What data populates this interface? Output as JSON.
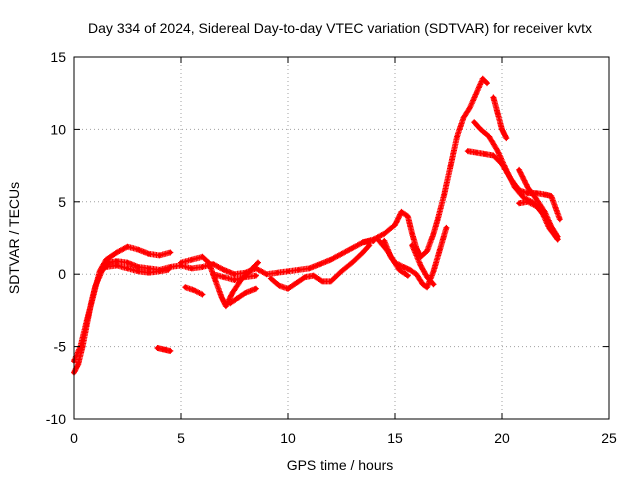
{
  "chart_data": {
    "type": "scatter",
    "title": "Day 334 of 2024, Sidereal Day-to-day VTEC variation (SDTVAR) for receiver kvtx",
    "xlabel": "GPS time / hours",
    "ylabel": "SDTVAR / TECUs",
    "xlim": [
      0,
      25
    ],
    "ylim": [
      -10,
      15
    ],
    "xticks": [
      "0",
      "5",
      "10",
      "15",
      "20",
      "25"
    ],
    "yticks": [
      "-10",
      "-5",
      "0",
      "5",
      "10",
      "15"
    ],
    "grid": true,
    "marker": "+",
    "series": [
      {
        "name": "SDTVAR",
        "color": "#ff0000",
        "segments": [
          [
            [
              0.0,
              -6.8
            ],
            [
              0.2,
              -6.2
            ],
            [
              0.4,
              -5.0
            ],
            [
              0.6,
              -3.5
            ],
            [
              0.8,
              -2.0
            ],
            [
              1.0,
              -0.8
            ],
            [
              1.3,
              0.2
            ],
            [
              1.6,
              0.8
            ],
            [
              2.0,
              0.9
            ],
            [
              2.5,
              0.8
            ],
            [
              3.0,
              0.5
            ],
            [
              3.5,
              0.4
            ],
            [
              4.0,
              0.3
            ],
            [
              4.5,
              0.5
            ],
            [
              5.0,
              0.6
            ],
            [
              5.5,
              0.4
            ],
            [
              6.0,
              0.5
            ],
            [
              6.5,
              0.7
            ],
            [
              7.0,
              0.3
            ],
            [
              7.5,
              0.0
            ],
            [
              8.0,
              0.1
            ],
            [
              8.5,
              0.4
            ],
            [
              9.0,
              0.0
            ],
            [
              9.5,
              0.1
            ],
            [
              10.0,
              0.2
            ],
            [
              10.5,
              0.3
            ],
            [
              11.0,
              0.4
            ],
            [
              11.5,
              0.7
            ],
            [
              12.0,
              1.0
            ],
            [
              12.5,
              1.4
            ],
            [
              13.0,
              1.8
            ],
            [
              13.5,
              2.2
            ],
            [
              14.0,
              2.4
            ],
            [
              14.5,
              2.8
            ],
            [
              15.0,
              3.4
            ],
            [
              15.3,
              4.3
            ],
            [
              15.6,
              4.0
            ],
            [
              15.8,
              2.8
            ],
            [
              16.0,
              1.8
            ],
            [
              16.2,
              1.2
            ],
            [
              16.5,
              1.6
            ],
            [
              16.8,
              2.8
            ],
            [
              17.0,
              3.8
            ],
            [
              17.3,
              5.5
            ],
            [
              17.6,
              7.5
            ],
            [
              17.9,
              9.5
            ],
            [
              18.2,
              10.8
            ],
            [
              18.5,
              11.5
            ],
            [
              18.8,
              12.5
            ],
            [
              19.1,
              13.5
            ],
            [
              19.3,
              13.2
            ]
          ],
          [
            [
              0.0,
              -6.0
            ],
            [
              0.3,
              -5.0
            ],
            [
              0.6,
              -3.2
            ],
            [
              0.9,
              -1.5
            ],
            [
              1.2,
              0.2
            ],
            [
              1.5,
              1.0
            ],
            [
              2.0,
              1.5
            ],
            [
              2.5,
              1.9
            ],
            [
              3.0,
              1.7
            ],
            [
              3.5,
              1.4
            ],
            [
              4.0,
              1.3
            ],
            [
              4.5,
              1.5
            ]
          ],
          [
            [
              1.5,
              0.5
            ],
            [
              2.0,
              0.6
            ],
            [
              2.5,
              0.4
            ],
            [
              3.0,
              0.2
            ],
            [
              3.5,
              0.1
            ],
            [
              4.0,
              0.2
            ],
            [
              4.4,
              0.3
            ]
          ],
          [
            [
              5.0,
              0.8
            ],
            [
              5.5,
              1.0
            ],
            [
              6.0,
              1.2
            ],
            [
              6.3,
              0.8
            ],
            [
              6.6,
              -0.4
            ],
            [
              6.9,
              -1.6
            ],
            [
              7.1,
              -2.2
            ],
            [
              7.4,
              -1.3
            ],
            [
              7.8,
              -0.4
            ],
            [
              8.2,
              0.2
            ],
            [
              8.6,
              0.8
            ]
          ],
          [
            [
              5.2,
              -0.9
            ],
            [
              5.6,
              -1.1
            ],
            [
              6.0,
              -1.4
            ]
          ],
          [
            [
              7.3,
              -2.0
            ],
            [
              7.6,
              -1.7
            ],
            [
              8.0,
              -1.3
            ],
            [
              8.5,
              -1.0
            ]
          ],
          [
            [
              6.5,
              0.0
            ],
            [
              7.0,
              -0.2
            ],
            [
              7.5,
              -0.4
            ],
            [
              8.0,
              -0.2
            ],
            [
              8.5,
              -0.1
            ]
          ],
          [
            [
              3.9,
              -5.1
            ],
            [
              4.2,
              -5.2
            ],
            [
              4.5,
              -5.3
            ]
          ],
          [
            [
              9.2,
              -0.3
            ],
            [
              9.6,
              -0.8
            ],
            [
              10.0,
              -1.0
            ],
            [
              10.4,
              -0.6
            ],
            [
              10.8,
              -0.2
            ],
            [
              11.2,
              -0.1
            ],
            [
              11.6,
              -0.5
            ],
            [
              12.0,
              -0.5
            ],
            [
              12.5,
              0.2
            ],
            [
              13.0,
              0.8
            ],
            [
              13.5,
              1.5
            ],
            [
              13.8,
              2.0
            ]
          ],
          [
            [
              14.2,
              2.4
            ],
            [
              14.6,
              1.7
            ],
            [
              15.0,
              0.8
            ],
            [
              15.4,
              0.5
            ],
            [
              15.7,
              0.3
            ],
            [
              16.0,
              0.0
            ],
            [
              16.3,
              -0.7
            ],
            [
              16.5,
              -0.9
            ],
            [
              16.8,
              0.2
            ],
            [
              17.1,
              1.7
            ],
            [
              17.4,
              3.2
            ]
          ],
          [
            [
              14.5,
              2.3
            ],
            [
              14.8,
              1.2
            ],
            [
              15.2,
              0.3
            ],
            [
              15.6,
              -0.1
            ]
          ],
          [
            [
              15.8,
              2.0
            ],
            [
              16.2,
              0.6
            ],
            [
              16.5,
              -0.2
            ],
            [
              16.8,
              -0.7
            ]
          ],
          [
            [
              18.4,
              8.5
            ],
            [
              18.8,
              8.4
            ],
            [
              19.2,
              8.3
            ],
            [
              19.6,
              8.2
            ],
            [
              20.0,
              7.6
            ],
            [
              20.4,
              6.6
            ],
            [
              20.8,
              5.8
            ],
            [
              21.2,
              5.6
            ],
            [
              21.6,
              5.6
            ],
            [
              22.0,
              5.5
            ],
            [
              22.3,
              5.4
            ],
            [
              22.7,
              3.8
            ]
          ],
          [
            [
              18.7,
              10.5
            ],
            [
              19.0,
              10.0
            ],
            [
              19.4,
              9.5
            ],
            [
              19.8,
              8.5
            ],
            [
              20.2,
              7.2
            ],
            [
              20.6,
              6.0
            ],
            [
              21.0,
              5.3
            ],
            [
              21.4,
              5.0
            ],
            [
              21.8,
              4.5
            ],
            [
              22.2,
              3.2
            ],
            [
              22.6,
              2.4
            ]
          ],
          [
            [
              19.6,
              12.2
            ],
            [
              19.8,
              11.1
            ],
            [
              20.0,
              10.0
            ],
            [
              20.2,
              9.4
            ]
          ],
          [
            [
              20.8,
              4.9
            ],
            [
              21.2,
              5.0
            ],
            [
              21.6,
              4.7
            ],
            [
              22.0,
              4.0
            ],
            [
              22.4,
              3.0
            ],
            [
              22.6,
              2.4
            ]
          ],
          [
            [
              20.8,
              7.2
            ],
            [
              21.2,
              6.0
            ],
            [
              21.6,
              5.2
            ],
            [
              22.0,
              4.3
            ],
            [
              22.3,
              3.3
            ],
            [
              22.6,
              2.6
            ]
          ],
          [
            [
              13.5,
              2.2
            ],
            [
              13.8,
              2.3
            ],
            [
              14.0,
              2.3
            ]
          ]
        ]
      }
    ]
  }
}
